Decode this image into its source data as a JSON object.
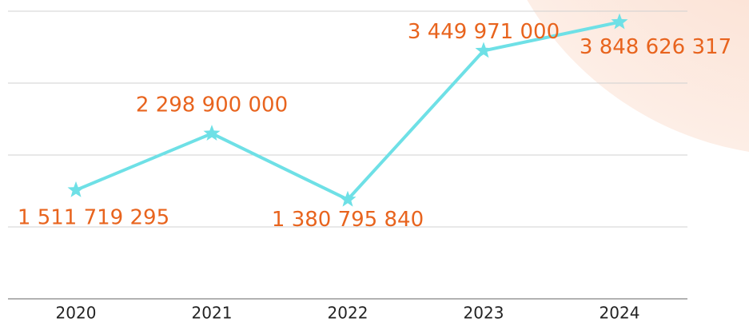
{
  "chart_data": {
    "type": "line",
    "categories": [
      "2020",
      "2021",
      "2022",
      "2023",
      "2024"
    ],
    "values": [
      1511719295,
      2298900000,
      1380795840,
      3449971000,
      3848626317
    ],
    "value_labels": [
      "1 511 719 295",
      "2 298 900 000",
      "1 380 795 840",
      "3 449 971 000",
      "3 848 626 317"
    ],
    "color": "#6ee0e6",
    "ylim": [
      0,
      4000000000
    ],
    "yticks": [
      0,
      1000000000,
      2000000000,
      3000000000,
      4000000000
    ],
    "grid": true
  }
}
